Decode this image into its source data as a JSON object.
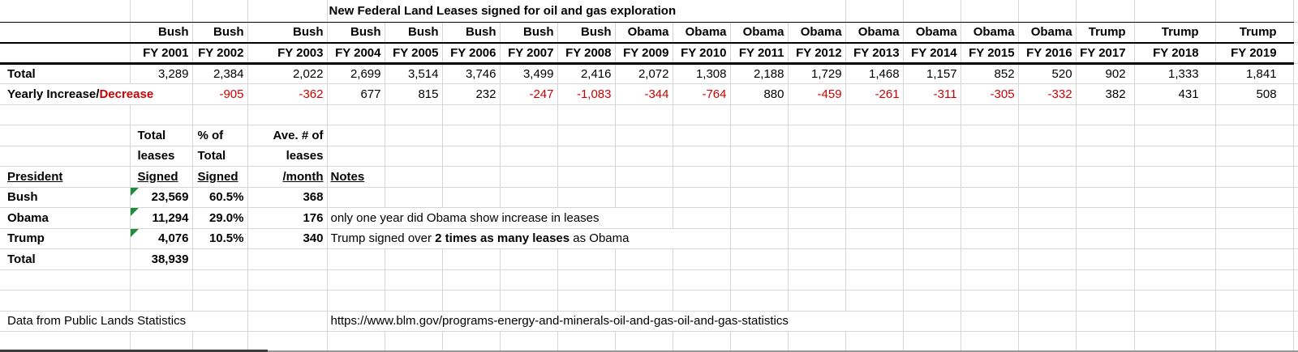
{
  "title": "New Federal Land Leases signed for oil and gas exploration",
  "colors": {
    "negative_text": "#cc0000",
    "flag_triangle_green": "#1f8b3b",
    "gridline": "#d6d6d6"
  },
  "main": {
    "total_label": "Total",
    "yearly_label_black": "Yearly Increase/",
    "yearly_label_red": "Decrease",
    "columns": [
      {
        "president": "Bush",
        "fy": "FY 2001",
        "total": "3,289",
        "change": ""
      },
      {
        "president": "Bush",
        "fy": "FY 2002",
        "total": "2,384",
        "change": "-905"
      },
      {
        "president": "Bush",
        "fy": "FY 2003",
        "total": "2,022",
        "change": "-362"
      },
      {
        "president": "Bush",
        "fy": "FY 2004",
        "total": "2,699",
        "change": "677"
      },
      {
        "president": "Bush",
        "fy": "FY 2005",
        "total": "3,514",
        "change": "815"
      },
      {
        "president": "Bush",
        "fy": "FY 2006",
        "total": "3,746",
        "change": "232"
      },
      {
        "president": "Bush",
        "fy": "FY 2007",
        "total": "3,499",
        "change": "-247"
      },
      {
        "president": "Bush",
        "fy": "FY 2008",
        "total": "2,416",
        "change": "-1,083"
      },
      {
        "president": "Obama",
        "fy": "FY 2009",
        "total": "2,072",
        "change": "-344"
      },
      {
        "president": "Obama",
        "fy": "FY 2010",
        "total": "1,308",
        "change": "-764"
      },
      {
        "president": "Obama",
        "fy": "FY 2011",
        "total": "2,188",
        "change": "880"
      },
      {
        "president": "Obama",
        "fy": "FY 2012",
        "total": "1,729",
        "change": "-459"
      },
      {
        "president": "Obama",
        "fy": "FY 2013",
        "total": "1,468",
        "change": "-261"
      },
      {
        "president": "Obama",
        "fy": "FY 2014",
        "total": "1,157",
        "change": "-311"
      },
      {
        "president": "Obama",
        "fy": "FY 2015",
        "total": "852",
        "change": "-305"
      },
      {
        "president": "Obama",
        "fy": "FY 2016",
        "total": "520",
        "change": "-332"
      },
      {
        "president": "Trump",
        "fy": "FY 2017",
        "total": "902",
        "change": "382"
      },
      {
        "president": "Trump",
        "fy": "FY 2018",
        "total": "1,333",
        "change": "431"
      },
      {
        "president": "Trump",
        "fy": "FY 2019",
        "total": "1,841",
        "change": "508"
      }
    ]
  },
  "summary": {
    "header": {
      "president": "President",
      "col1": [
        "Total",
        "leases",
        "Signed"
      ],
      "col2": [
        "% of",
        "Total",
        "Signed"
      ],
      "col3": [
        "Ave. # of",
        "leases",
        "/month"
      ],
      "notes": "Notes"
    },
    "rows": [
      {
        "president": "Bush",
        "total": "23,569",
        "pct": "60.5%",
        "avg": "368",
        "flag": true,
        "note": []
      },
      {
        "president": "Obama",
        "total": "11,294",
        "pct": "29.0%",
        "avg": "176",
        "flag": true,
        "note": [
          {
            "t": "only one year did Obama show increase in leases",
            "b": false
          }
        ]
      },
      {
        "president": "Trump",
        "total": "4,076",
        "pct": "10.5%",
        "avg": "340",
        "flag": true,
        "note": [
          {
            "t": "Trump  signed over ",
            "b": false
          },
          {
            "t": "2 times as many leases",
            "b": true
          },
          {
            "t": " as Obama",
            "b": false
          }
        ]
      }
    ],
    "total_label": "Total",
    "total_value": "38,939"
  },
  "footer": {
    "source": "Data from Public Lands Statistics",
    "url": "https://www.blm.gov/programs-energy-and-minerals-oil-and-gas-oil-and-gas-statistics"
  }
}
